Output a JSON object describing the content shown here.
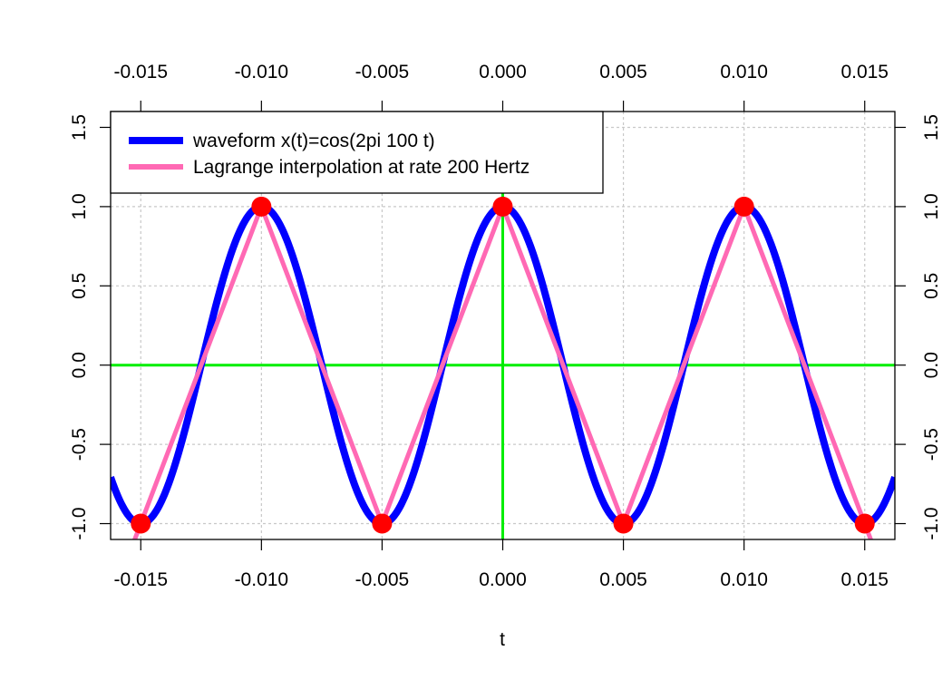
{
  "chart_data": {
    "type": "line",
    "title": "",
    "xlabel": "t",
    "ylabel": "",
    "xlim": [
      -0.01625,
      0.01625
    ],
    "ylim": [
      -1.1,
      1.6
    ],
    "x_ticks": [
      -0.015,
      -0.01,
      -0.005,
      0.0,
      0.005,
      0.01,
      0.015
    ],
    "x_tick_labels": [
      "-0.015",
      "-0.010",
      "-0.005",
      "0.000",
      "0.005",
      "0.010",
      "0.015"
    ],
    "y_ticks": [
      -1.0,
      -0.5,
      0.0,
      0.5,
      1.0,
      1.5
    ],
    "y_tick_labels": [
      "-1.0",
      "-0.5",
      "0.0",
      "0.5",
      "1.0",
      "1.5"
    ],
    "grid": true,
    "axes_on_all_sides": true,
    "reference_lines": {
      "h_at": 0.0,
      "v_at": 0.0,
      "color": "#00ee00"
    },
    "legend_position": "top-left",
    "series": [
      {
        "name": "waveform x(t)=cos(2pi 100 t)",
        "kind": "curve",
        "formula": "cos(2*pi*100*t)",
        "frequency_hz": 100,
        "color": "#0000ff"
      },
      {
        "name": "Lagrange interpolation at rate 200 Hertz",
        "kind": "piecewise-linear",
        "sample_rate_hz": 200,
        "color": "#ff69b4",
        "x": [
          -0.015,
          -0.01,
          -0.005,
          0.0,
          0.005,
          0.01,
          0.015
        ],
        "values": [
          -1,
          1,
          -1,
          1,
          -1,
          1,
          -1
        ]
      },
      {
        "kind": "points",
        "color": "#ff0000",
        "x": [
          -0.015,
          -0.01,
          -0.005,
          0.0,
          0.005,
          0.01,
          0.015
        ],
        "values": [
          -1,
          1,
          -1,
          1,
          -1,
          1,
          -1
        ]
      }
    ]
  }
}
